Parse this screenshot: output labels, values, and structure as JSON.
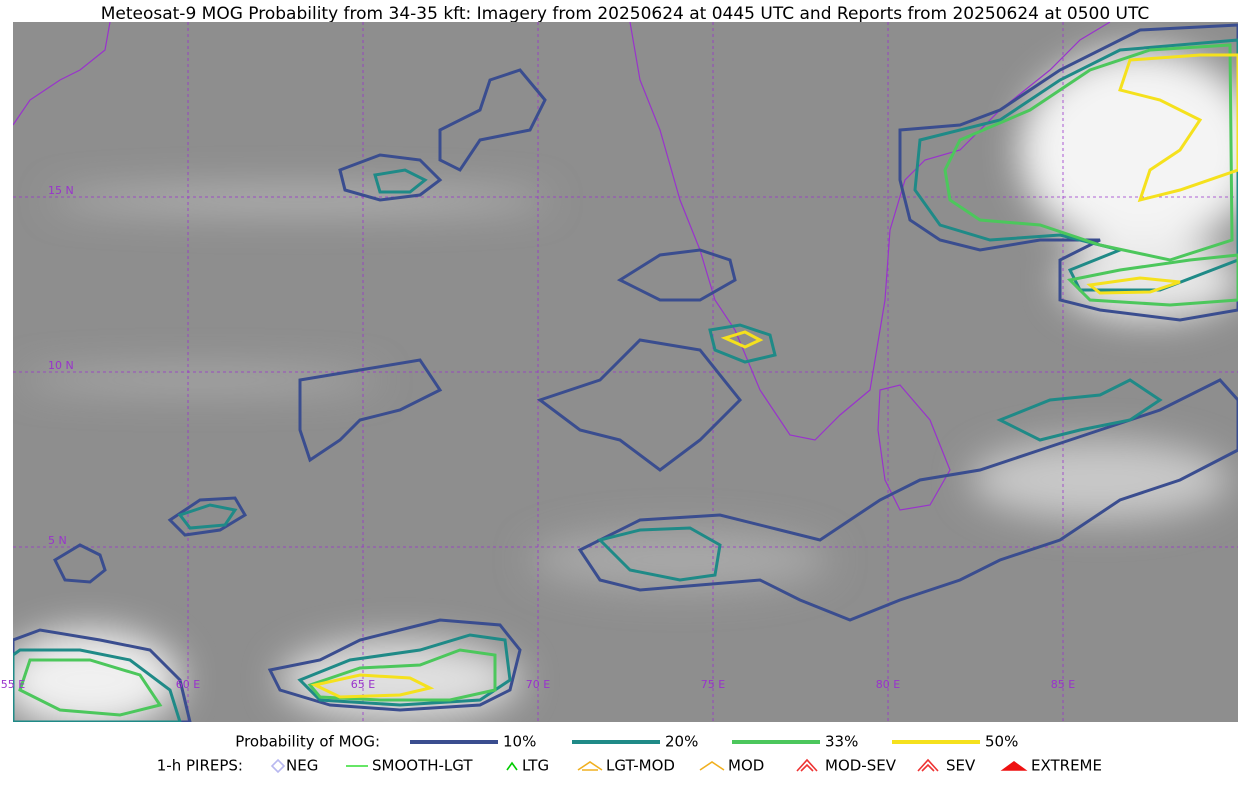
{
  "title": "Meteosat-9 MOG Probability from 34-35 kft: Imagery from 20250624 at 0445 UTC and Reports from 20250624 at 0500 UTC",
  "map": {
    "lat_labels": [
      "15 N",
      "10 N",
      "5 N"
    ],
    "lon_labels": [
      "55 E",
      "60 E",
      "65 E",
      "70 E",
      "75 E",
      "80 E",
      "85 E"
    ]
  },
  "legend": {
    "probability_label": "Probability of MOG:",
    "probability_items": [
      {
        "label": "10%",
        "color": "#3a4d8f"
      },
      {
        "label": "20%",
        "color": "#1f8a87"
      },
      {
        "label": "33%",
        "color": "#4cc75c"
      },
      {
        "label": "50%",
        "color": "#f5e11d"
      }
    ],
    "pirep_label": "1-h PIREPS:",
    "pirep_items": [
      {
        "label": "NEG",
        "color": "#b8b8f0"
      },
      {
        "label": "SMOOTH-LGT",
        "color": "#33dd33"
      },
      {
        "label": "LTG",
        "color": "#00cc00"
      },
      {
        "label": "LGT-MOD",
        "color": "#f0b020"
      },
      {
        "label": "MOD",
        "color": "#f0b020"
      },
      {
        "label": "MOD-SEV",
        "color": "#ee3333"
      },
      {
        "label": "SEV",
        "color": "#ee3333"
      },
      {
        "label": "EXTREME",
        "color": "#ee1111"
      }
    ]
  }
}
